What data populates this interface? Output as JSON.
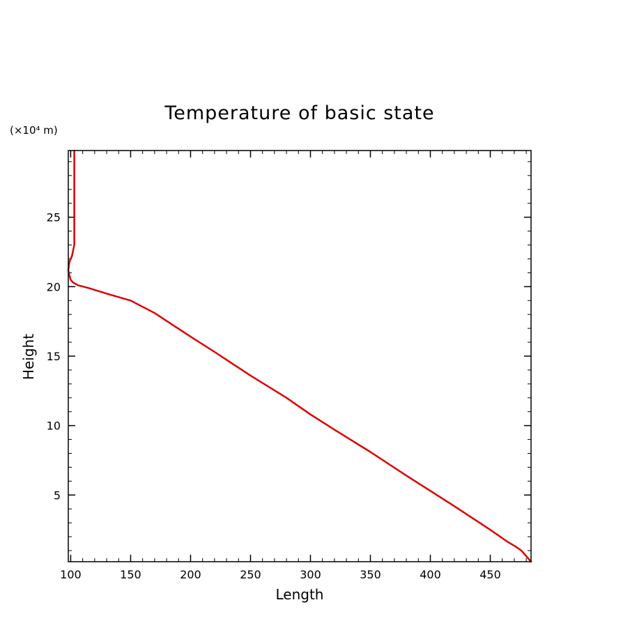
{
  "chart_data": {
    "type": "line",
    "title": "Temperature of basic state",
    "xlabel": "Length",
    "ylabel": "Height",
    "y_unit_note": "(×10⁴ m)",
    "xlim": [
      98,
      484
    ],
    "ylim": [
      0.2,
      29.8
    ],
    "x_ticks": [
      100,
      150,
      200,
      250,
      300,
      350,
      400,
      450
    ],
    "x_tick_labels": [
      "100",
      "150",
      "200",
      "250",
      "300",
      "350",
      "400",
      "450"
    ],
    "y_ticks": [
      5,
      10,
      15,
      20,
      25
    ],
    "y_tick_labels": [
      "5",
      "10",
      "15",
      "20",
      "25"
    ],
    "x_minor_step": 10,
    "y_minor_step": 1,
    "grid": false,
    "line_color": "#dd0000",
    "series": [
      {
        "x": [
          484,
          480,
          476,
          471,
          465,
          450,
          420,
          400,
          380,
          350,
          320,
          300,
          280,
          250,
          220,
          200,
          170,
          150,
          130,
          115,
          106,
          102,
          100,
          99,
          98,
          99,
          101,
          102,
          103,
          103,
          103,
          103,
          103,
          103
        ],
        "y": [
          0.2,
          0.6,
          1.0,
          1.3,
          1.6,
          2.5,
          4.2,
          5.3,
          6.4,
          8.1,
          9.7,
          10.8,
          12.0,
          13.6,
          15.3,
          16.4,
          18.1,
          19.0,
          19.5,
          19.9,
          20.1,
          20.3,
          20.5,
          20.8,
          21.2,
          21.8,
          22.2,
          22.6,
          23.0,
          24.0,
          25.0,
          26.0,
          28.0,
          29.8
        ]
      }
    ]
  }
}
